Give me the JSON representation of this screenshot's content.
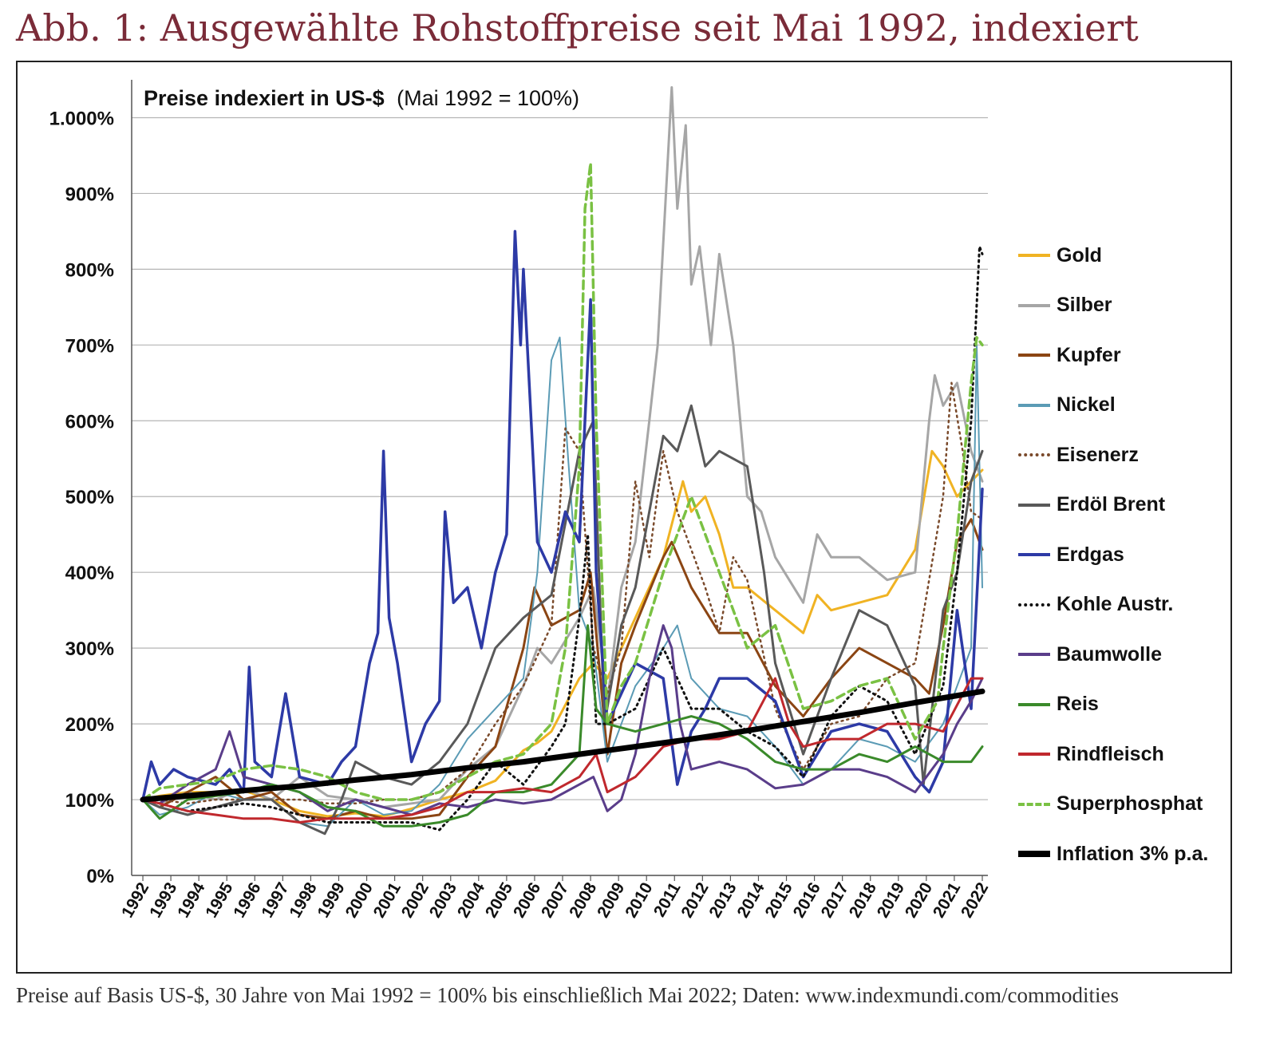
{
  "figure": {
    "title": "Abb. 1: Ausgewählte Rohstoffpreise seit Mai 1992, indexiert",
    "caption": "Preise auf Basis US-$, 30 Jahre von Mai 1992 = 100% bis einschließlich Mai 2022; Daten: www.indexmundi.com/commodities"
  },
  "chart_data": {
    "type": "line",
    "title_bold": "Preise indexiert in US-$",
    "title_normal": "(Mai 1992 = 100%)",
    "ylim": [
      0,
      1050
    ],
    "xlim": [
      1992.0,
      2022.6
    ],
    "y_ticks": [
      0,
      100,
      200,
      300,
      400,
      500,
      600,
      700,
      800,
      900,
      1000
    ],
    "y_tick_labels": [
      "0%",
      "100%",
      "200%",
      "300%",
      "400%",
      "500%",
      "600%",
      "700%",
      "800%",
      "900%",
      "1.000%"
    ],
    "x_tick_labels": [
      "1992",
      "1993",
      "1994",
      "1995",
      "1996",
      "1997",
      "1998",
      "1999",
      "2000",
      "2001",
      "2002",
      "2003",
      "2004",
      "2005",
      "2006",
      "2007",
      "2008",
      "2009",
      "2010",
      "2011",
      "2012",
      "2013",
      "2014",
      "2015",
      "2016",
      "2017",
      "2018",
      "2019",
      "2020",
      "2021",
      "2022"
    ],
    "grid": "horizontal",
    "legend_position": "right",
    "series": [
      {
        "name": "Gold",
        "color": "#f0b323",
        "style": "solid",
        "width": 3,
        "x": [
          1992.4,
          1993,
          1994,
          1995,
          1996,
          1997,
          1998,
          1999,
          2000,
          2001,
          2002,
          2003,
          2004,
          2005,
          2006,
          2006.5,
          2007,
          2008,
          2008.5,
          2009,
          2010,
          2011,
          2011.7,
          2012,
          2012.5,
          2013,
          2013.5,
          2014,
          2015,
          2016,
          2016.5,
          2017,
          2018,
          2019,
          2020,
          2020.6,
          2021,
          2021.5,
          2022,
          2022.4
        ],
        "y": [
          100,
          105,
          110,
          110,
          112,
          100,
          85,
          78,
          82,
          78,
          88,
          100,
          110,
          125,
          165,
          175,
          190,
          260,
          280,
          260,
          340,
          420,
          520,
          480,
          500,
          450,
          380,
          380,
          350,
          320,
          370,
          350,
          360,
          370,
          430,
          560,
          540,
          500,
          520,
          535
        ]
      },
      {
        "name": "Silber",
        "color": "#a6a6a6",
        "style": "solid",
        "width": 3,
        "x": [
          1992.4,
          1993,
          1994,
          1995,
          1996,
          1997,
          1998,
          1999,
          2000,
          2001,
          2002,
          2003,
          2004,
          2005,
          2006,
          2006.5,
          2007,
          2008,
          2008.5,
          2009,
          2009.5,
          2010,
          2010.5,
          2010.8,
          2011.3,
          2011.5,
          2011.8,
          2012,
          2012.3,
          2012.7,
          2013,
          2013.5,
          2014,
          2014.5,
          2015,
          2016,
          2016.5,
          2017,
          2018,
          2019,
          2020,
          2020.5,
          2020.7,
          2021,
          2021.5,
          2022,
          2022.4
        ],
        "y": [
          100,
          95,
          110,
          100,
          115,
          100,
          130,
          105,
          100,
          90,
          95,
          100,
          140,
          170,
          250,
          300,
          280,
          340,
          380,
          230,
          380,
          440,
          600,
          700,
          1040,
          880,
          990,
          780,
          830,
          700,
          820,
          700,
          500,
          480,
          420,
          360,
          450,
          420,
          420,
          390,
          400,
          600,
          660,
          620,
          650,
          560,
          520
        ]
      },
      {
        "name": "Kupfer",
        "color": "#8b4513",
        "style": "solid",
        "width": 3,
        "x": [
          1992.4,
          1993,
          1994,
          1995,
          1996,
          1997,
          1998,
          1999,
          2000,
          2001,
          2002,
          2003,
          2004,
          2005,
          2006,
          2006.4,
          2007,
          2008,
          2008.4,
          2009,
          2009.5,
          2010,
          2011,
          2011.3,
          2012,
          2012.5,
          2013,
          2014,
          2015,
          2016,
          2017,
          2018,
          2019,
          2020,
          2020.5,
          2021,
          2021.5,
          2022,
          2022.4
        ],
        "y": [
          100,
          90,
          110,
          130,
          100,
          110,
          80,
          75,
          85,
          75,
          75,
          80,
          130,
          170,
          300,
          380,
          330,
          350,
          400,
          160,
          280,
          330,
          420,
          440,
          380,
          350,
          320,
          320,
          250,
          210,
          260,
          300,
          280,
          260,
          240,
          330,
          440,
          470,
          430
        ]
      },
      {
        "name": "Nickel",
        "color": "#5b9bb5",
        "style": "solid",
        "width": 2,
        "x": [
          1992.4,
          1993,
          1994,
          1995,
          1996,
          1997,
          1998,
          1999,
          2000,
          2001,
          2002,
          2003,
          2004,
          2004.5,
          2005,
          2006,
          2006.5,
          2007,
          2007.3,
          2007.6,
          2008,
          2008.5,
          2009,
          2010,
          2011,
          2011.5,
          2012,
          2013,
          2014,
          2015,
          2016,
          2017,
          2018,
          2019,
          2020,
          2021,
          2022,
          2022.2,
          2022.4
        ],
        "y": [
          100,
          80,
          90,
          110,
          100,
          100,
          70,
          65,
          100,
          80,
          85,
          120,
          180,
          200,
          220,
          260,
          400,
          680,
          710,
          550,
          350,
          300,
          150,
          250,
          300,
          330,
          260,
          220,
          210,
          170,
          120,
          140,
          180,
          170,
          150,
          200,
          300,
          700,
          380
        ]
      },
      {
        "name": "Eisenerz",
        "color": "#7a4a2b",
        "style": "dotted",
        "width": 2.5,
        "x": [
          1992.4,
          1993,
          1994,
          1995,
          1996,
          1997,
          1998,
          1999,
          2000,
          2001,
          2002,
          2003,
          2004,
          2005,
          2006,
          2007,
          2007.5,
          2008,
          2008.5,
          2009,
          2009.5,
          2010,
          2010.5,
          2011,
          2011.5,
          2012,
          2012.5,
          2013,
          2013.5,
          2014,
          2015,
          2016,
          2017,
          2018,
          2019,
          2020,
          2021,
          2021.3,
          2021.7,
          2022,
          2022.4
        ],
        "y": [
          100,
          100,
          95,
          100,
          100,
          100,
          100,
          95,
          95,
          100,
          100,
          110,
          140,
          200,
          250,
          330,
          590,
          560,
          300,
          240,
          300,
          520,
          420,
          560,
          480,
          430,
          380,
          320,
          420,
          390,
          220,
          140,
          200,
          210,
          260,
          280,
          500,
          650,
          560,
          480,
          470
        ]
      },
      {
        "name": "Erdöl Brent",
        "color": "#595959",
        "style": "solid",
        "width": 3,
        "x": [
          1992.4,
          1993,
          1994,
          1995,
          1996,
          1997,
          1998,
          1998.9,
          1999.5,
          2000,
          2001,
          2002,
          2003,
          2004,
          2005,
          2006,
          2007,
          2008,
          2008.5,
          2008.9,
          2009.5,
          2010,
          2011,
          2011.5,
          2012,
          2012.5,
          2013,
          2014,
          2014.6,
          2015,
          2016,
          2017,
          2018,
          2019,
          2020,
          2020.3,
          2021,
          2021.5,
          2022,
          2022.4
        ],
        "y": [
          100,
          90,
          80,
          90,
          100,
          100,
          70,
          55,
          100,
          150,
          130,
          120,
          150,
          200,
          300,
          340,
          370,
          560,
          600,
          200,
          330,
          380,
          580,
          560,
          620,
          540,
          560,
          540,
          400,
          280,
          160,
          260,
          350,
          330,
          250,
          120,
          350,
          400,
          520,
          560
        ]
      },
      {
        "name": "Erdgas",
        "color": "#2d3aa6",
        "style": "solid",
        "width": 3.5,
        "x": [
          1992.4,
          1992.7,
          1993,
          1993.5,
          1994,
          1995,
          1995.5,
          1996,
          1996.2,
          1996.4,
          1997,
          1997.5,
          1998,
          1999,
          1999.5,
          2000,
          2000.5,
          2000.8,
          2001,
          2001.2,
          2001.5,
          2002,
          2002.5,
          2003,
          2003.2,
          2003.5,
          2004,
          2004.5,
          2005,
          2005.4,
          2005.7,
          2005.9,
          2006,
          2006.5,
          2007,
          2007.5,
          2008,
          2008.4,
          2008.6,
          2009,
          2009.5,
          2010,
          2011,
          2011.5,
          2012,
          2012.5,
          2013,
          2014,
          2015,
          2016,
          2017,
          2018,
          2019,
          2020,
          2020.5,
          2021,
          2021.5,
          2022,
          2022.4
        ],
        "y": [
          100,
          150,
          120,
          140,
          130,
          120,
          140,
          110,
          275,
          150,
          130,
          240,
          130,
          120,
          150,
          170,
          280,
          320,
          560,
          340,
          280,
          150,
          200,
          230,
          480,
          360,
          380,
          300,
          400,
          450,
          850,
          700,
          800,
          440,
          400,
          480,
          440,
          760,
          400,
          200,
          240,
          280,
          260,
          120,
          190,
          220,
          260,
          260,
          230,
          130,
          190,
          200,
          190,
          130,
          110,
          150,
          350,
          220,
          510
        ]
      },
      {
        "name": "Kohle Austr.",
        "color": "#111111",
        "style": "dotted",
        "width": 3,
        "x": [
          1992.4,
          1993,
          1994,
          1995,
          1996,
          1997,
          1998,
          1999,
          2000,
          2001,
          2002,
          2003,
          2004,
          2005,
          2006,
          2007,
          2007.5,
          2008,
          2008.3,
          2008.6,
          2009,
          2010,
          2011,
          2011.5,
          2012,
          2013,
          2014,
          2015,
          2016,
          2017,
          2018,
          2019,
          2020,
          2021,
          2021.5,
          2022,
          2022.3,
          2022.4
        ],
        "y": [
          100,
          95,
          85,
          90,
          95,
          90,
          80,
          70,
          70,
          70,
          70,
          60,
          100,
          150,
          120,
          170,
          200,
          340,
          450,
          200,
          200,
          220,
          300,
          260,
          220,
          220,
          190,
          170,
          130,
          210,
          250,
          230,
          160,
          250,
          400,
          600,
          830,
          820
        ]
      },
      {
        "name": "Baumwolle",
        "color": "#5a3d8a",
        "style": "solid",
        "width": 3,
        "x": [
          1992.4,
          1993,
          1994,
          1995,
          1995.5,
          1996,
          1997,
          1998,
          1999,
          2000,
          2001,
          2002,
          2003,
          2004,
          2005,
          2006,
          2007,
          2008,
          2008.5,
          2009,
          2009.5,
          2010,
          2010.5,
          2011,
          2011.3,
          2011.6,
          2012,
          2013,
          2014,
          2015,
          2016,
          2017,
          2018,
          2019,
          2020,
          2021,
          2021.5,
          2022,
          2022.4
        ],
        "y": [
          100,
          95,
          120,
          140,
          190,
          130,
          120,
          110,
          85,
          100,
          90,
          80,
          95,
          90,
          100,
          95,
          100,
          120,
          130,
          85,
          100,
          160,
          260,
          330,
          300,
          200,
          140,
          150,
          140,
          115,
          120,
          140,
          140,
          130,
          110,
          160,
          200,
          230,
          260
        ]
      },
      {
        "name": "Reis",
        "color": "#3a8a2a",
        "style": "solid",
        "width": 3,
        "x": [
          1992.4,
          1993,
          1994,
          1995,
          1996,
          1997,
          1998,
          1999,
          2000,
          2001,
          2002,
          2003,
          2004,
          2005,
          2006,
          2007,
          2008,
          2008.3,
          2008.6,
          2009,
          2010,
          2011,
          2012,
          2013,
          2014,
          2015,
          2016,
          2017,
          2018,
          2019,
          2020,
          2021,
          2022,
          2022.4
        ],
        "y": [
          100,
          75,
          100,
          105,
          110,
          120,
          110,
          90,
          85,
          65,
          65,
          70,
          80,
          110,
          110,
          120,
          160,
          330,
          220,
          200,
          190,
          200,
          210,
          200,
          180,
          150,
          140,
          140,
          160,
          150,
          170,
          150,
          150,
          170
        ]
      },
      {
        "name": "Rindfleisch",
        "color": "#c0282d",
        "style": "solid",
        "width": 3,
        "x": [
          1992.4,
          1993,
          1994,
          1995,
          1996,
          1997,
          1998,
          1999,
          2000,
          2001,
          2002,
          2003,
          2004,
          2005,
          2006,
          2007,
          2008,
          2008.6,
          2009,
          2010,
          2011,
          2012,
          2013,
          2014,
          2015,
          2015.5,
          2016,
          2017,
          2018,
          2019,
          2020,
          2021,
          2022,
          2022.4
        ],
        "y": [
          100,
          95,
          85,
          80,
          75,
          75,
          70,
          75,
          75,
          75,
          80,
          90,
          110,
          110,
          115,
          110,
          130,
          160,
          110,
          130,
          170,
          180,
          180,
          190,
          260,
          200,
          170,
          180,
          180,
          200,
          200,
          190,
          260,
          260
        ]
      },
      {
        "name": "Superphosphat",
        "color": "#7ac143",
        "style": "dashed",
        "width": 3.5,
        "x": [
          1992.4,
          1993,
          1994,
          1995,
          1996,
          1997,
          1998,
          1999,
          2000,
          2001,
          2002,
          2003,
          2004,
          2005,
          2006,
          2007,
          2007.5,
          2008,
          2008.2,
          2008.4,
          2008.6,
          2009,
          2009.5,
          2010,
          2011,
          2012,
          2013,
          2014,
          2015,
          2016,
          2017,
          2018,
          2019,
          2020,
          2020.8,
          2021,
          2021.5,
          2022,
          2022.2,
          2022.4
        ],
        "y": [
          100,
          115,
          120,
          125,
          140,
          145,
          140,
          130,
          110,
          100,
          100,
          110,
          130,
          150,
          160,
          200,
          300,
          540,
          880,
          940,
          600,
          200,
          250,
          280,
          400,
          500,
          400,
          300,
          330,
          220,
          230,
          250,
          260,
          180,
          230,
          300,
          450,
          650,
          710,
          700
        ]
      },
      {
        "name": "Inflation 3% p.a.",
        "color": "#000000",
        "style": "solid",
        "width": 7,
        "x": [
          1992.4,
          1994,
          1996,
          1998,
          2000,
          2002,
          2004,
          2006,
          2008,
          2010,
          2012,
          2014,
          2016,
          2018,
          2020,
          2022.4
        ],
        "y": [
          100,
          105,
          112,
          118,
          126,
          133,
          142,
          150,
          160,
          170,
          180,
          191,
          203,
          215,
          228,
          243
        ]
      }
    ]
  }
}
